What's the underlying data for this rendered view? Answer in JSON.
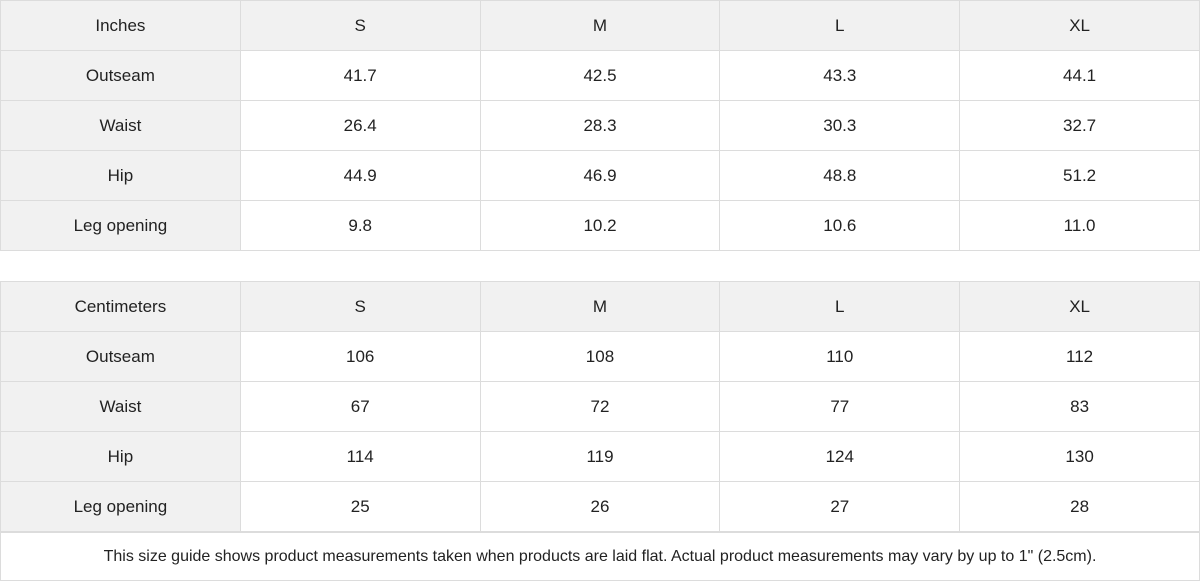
{
  "tables": [
    {
      "header": [
        "Inches",
        "S",
        "M",
        "L",
        "XL"
      ],
      "rows": [
        [
          "Outseam",
          "41.7",
          "42.5",
          "43.3",
          "44.1"
        ],
        [
          "Waist",
          "26.4",
          "28.3",
          "30.3",
          "32.7"
        ],
        [
          "Hip",
          "44.9",
          "46.9",
          "48.8",
          "51.2"
        ],
        [
          "Leg opening",
          "9.8",
          "10.2",
          "10.6",
          "11.0"
        ]
      ]
    },
    {
      "header": [
        "Centimeters",
        "S",
        "M",
        "L",
        "XL"
      ],
      "rows": [
        [
          "Outseam",
          "106",
          "108",
          "110",
          "112"
        ],
        [
          "Waist",
          "67",
          "72",
          "77",
          "83"
        ],
        [
          "Hip",
          "114",
          "119",
          "124",
          "130"
        ],
        [
          "Leg opening",
          "25",
          "26",
          "27",
          "28"
        ]
      ]
    }
  ],
  "footnote": "This size guide shows product measurements taken when products are laid flat.  Actual product measurements may vary by up to 1\" (2.5cm).",
  "colors": {
    "header_bg": "#f1f1f1",
    "border": "#dcdcdc"
  }
}
